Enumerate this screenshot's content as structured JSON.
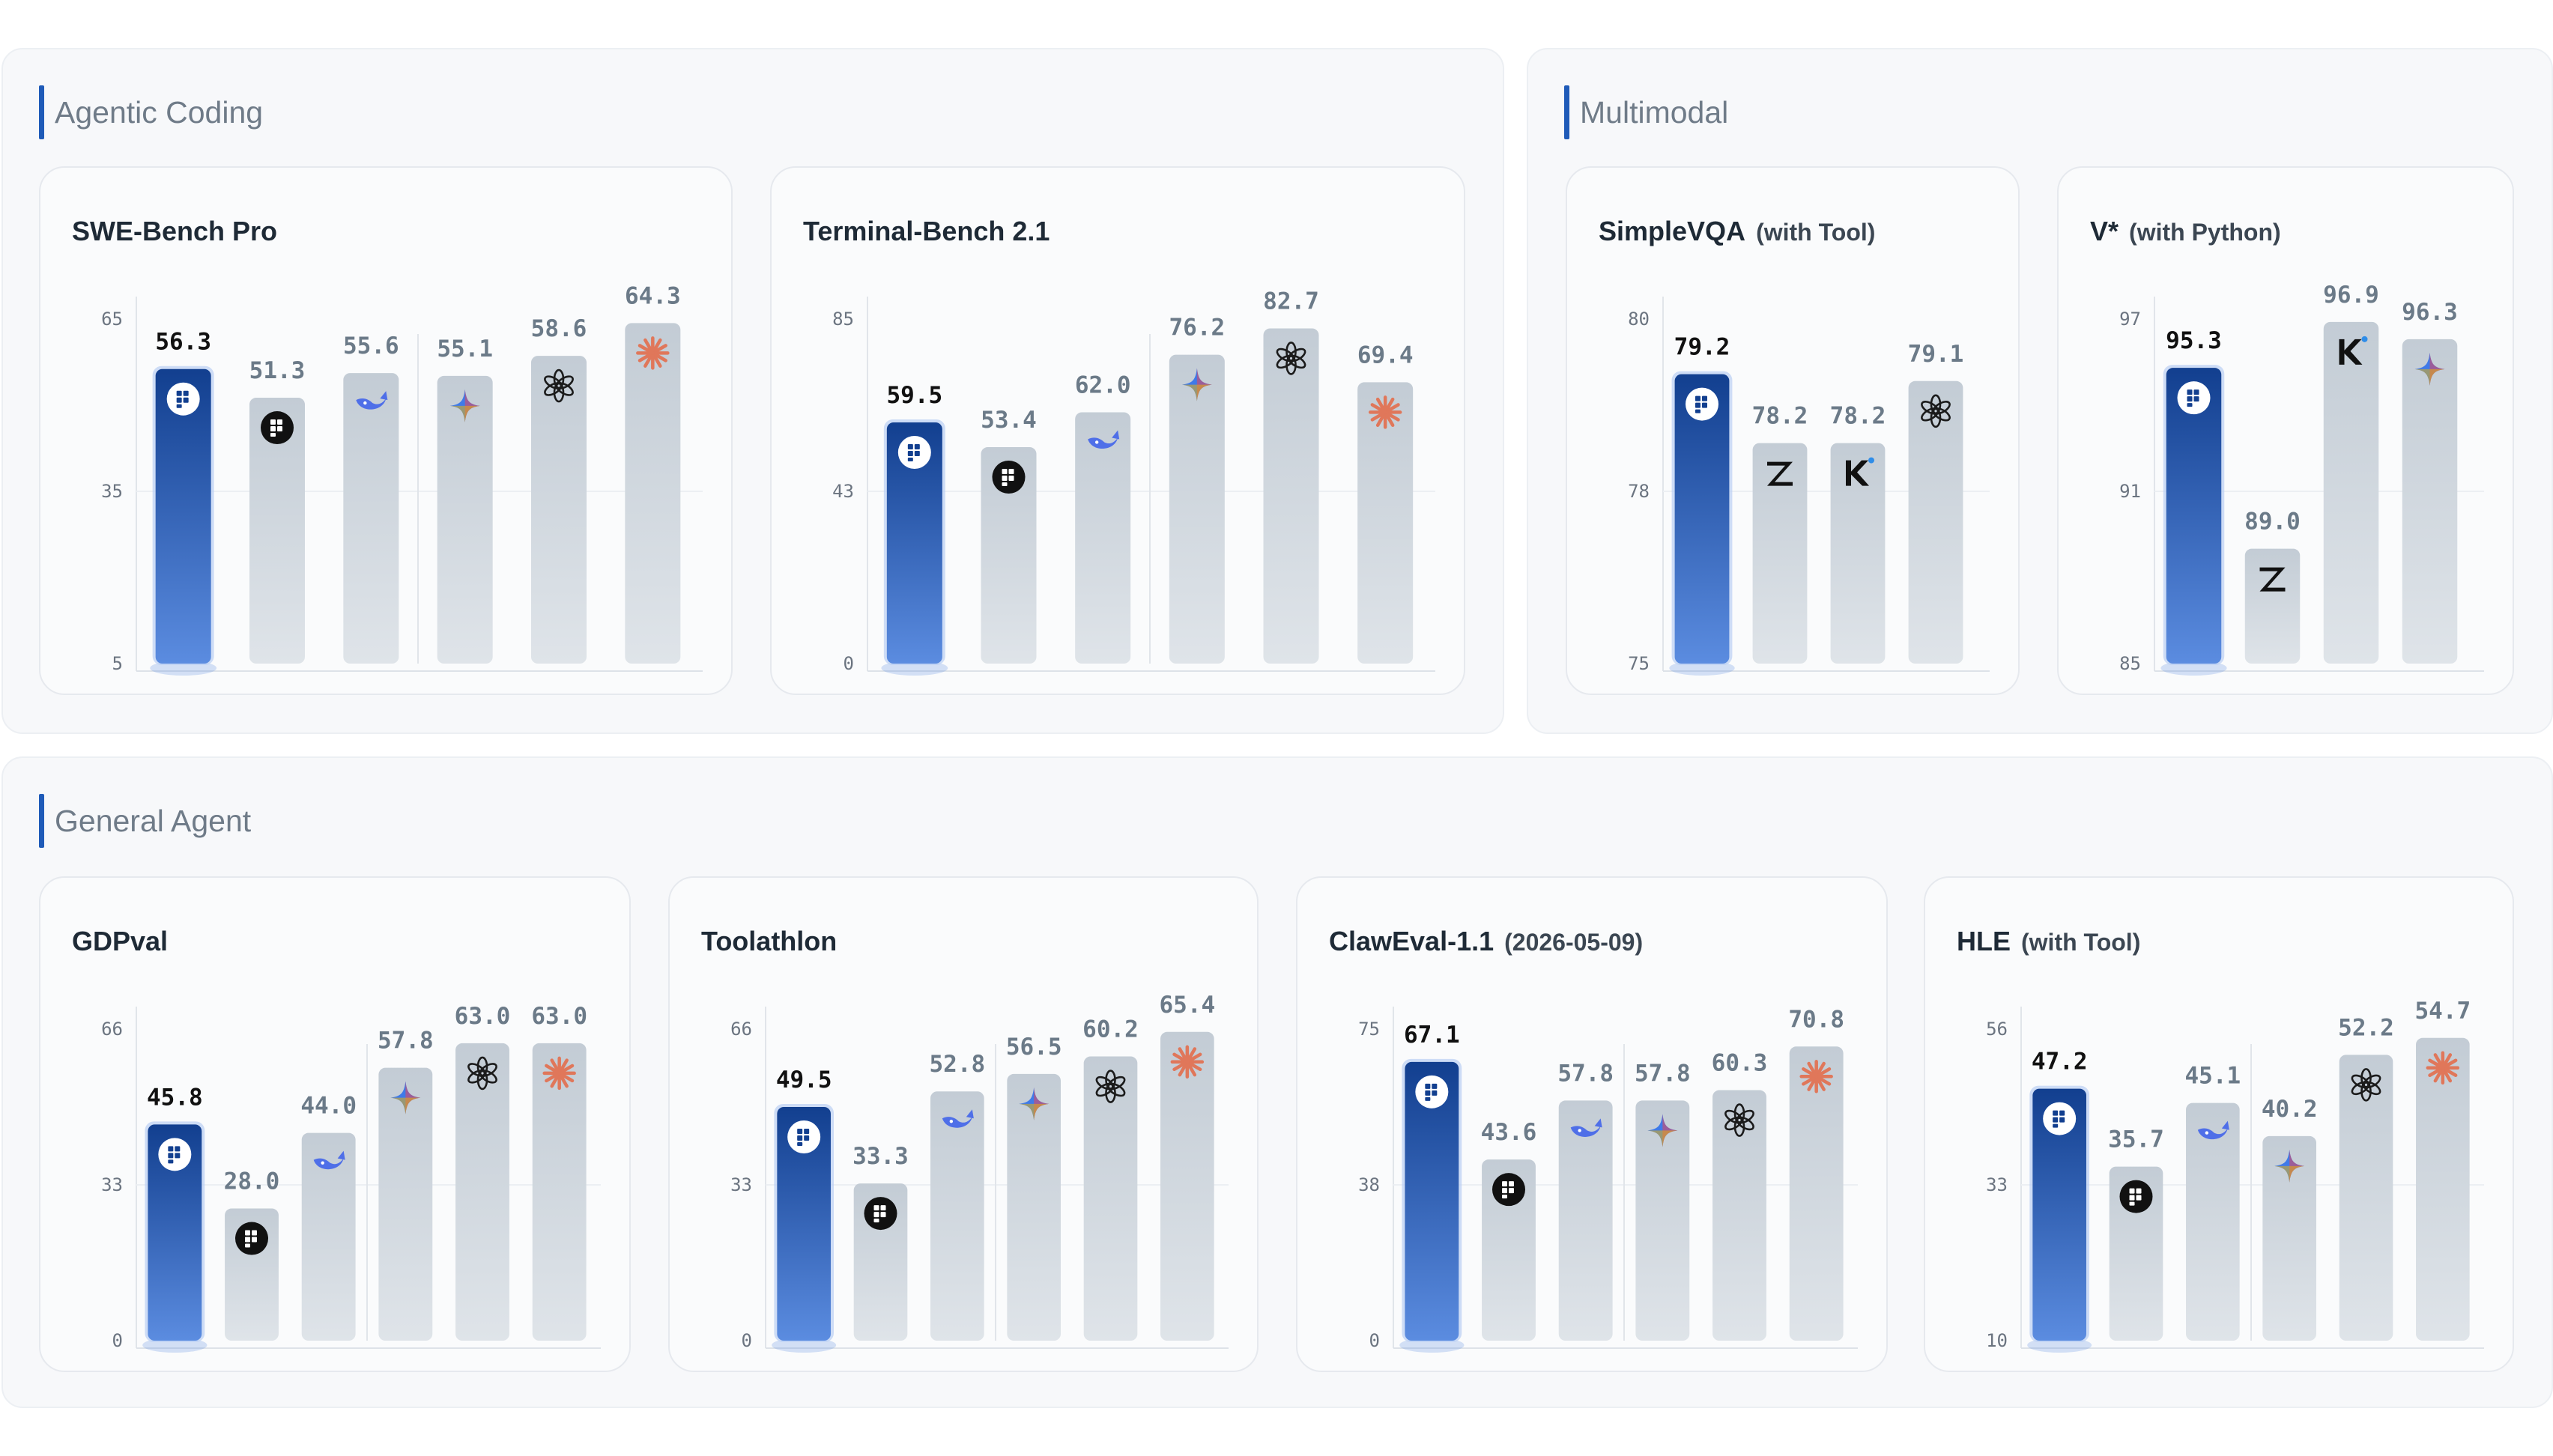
{
  "sections": [
    {
      "title": "Agentic Coding"
    },
    {
      "title": "Multimodal"
    },
    {
      "title": "General Agent"
    }
  ],
  "colors": {
    "highlight_top": "#123f8f",
    "highlight_bottom": "#5b8ce0",
    "bar_top": "#c3ccd5",
    "bar_bottom": "#dfe4e9",
    "highlight_label": "#111111",
    "other_label": "#6b7a88",
    "section_accent": "#1f5bb8"
  },
  "chart_data": [
    {
      "type": "bar",
      "title": "SWE-Bench Pro",
      "subtitle": "",
      "yticks": [
        "65",
        "35",
        "5"
      ],
      "ylim": [
        5,
        65
      ],
      "values": [
        56.3,
        51.3,
        55.6,
        55.1,
        58.6,
        64.3
      ],
      "labels": [
        "56.3",
        "51.3",
        "55.6",
        "55.1",
        "58.6",
        "64.3"
      ],
      "icons": [
        "highlight-logo-icon",
        "dark-logo-icon",
        "whale-icon",
        "sparkle-icon",
        "openai-icon",
        "starburst-icon"
      ],
      "highlight": 0,
      "group_split": 3
    },
    {
      "type": "bar",
      "title": "Terminal-Bench 2.1",
      "subtitle": "",
      "yticks": [
        "85",
        "43",
        "0"
      ],
      "ylim": [
        0,
        85
      ],
      "values": [
        59.5,
        53.4,
        62.0,
        76.2,
        82.7,
        69.4
      ],
      "labels": [
        "59.5",
        "53.4",
        "62.0",
        "76.2",
        "82.7",
        "69.4"
      ],
      "icons": [
        "highlight-logo-icon",
        "dark-logo-icon",
        "whale-icon",
        "sparkle-icon",
        "openai-icon",
        "starburst-icon"
      ],
      "highlight": 0,
      "group_split": 3
    },
    {
      "type": "bar",
      "title": "SimpleVQA",
      "subtitle": "(with Tool)",
      "yticks": [
        "80",
        "78",
        "75"
      ],
      "ylim": [
        75,
        80
      ],
      "values": [
        79.2,
        78.2,
        78.2,
        79.1
      ],
      "labels": [
        "79.2",
        "78.2",
        "78.2",
        "79.1"
      ],
      "icons": [
        "highlight-logo-icon",
        "z-logo-icon",
        "k-logo-icon",
        "openai-icon"
      ],
      "highlight": 0,
      "group_split": null
    },
    {
      "type": "bar",
      "title": "V*",
      "subtitle": "(with Python)",
      "yticks": [
        "97",
        "91",
        "85"
      ],
      "ylim": [
        85,
        97
      ],
      "values": [
        95.3,
        89.0,
        96.9,
        96.3
      ],
      "labels": [
        "95.3",
        "89.0",
        "96.9",
        "96.3"
      ],
      "icons": [
        "highlight-logo-icon",
        "z-logo-icon",
        "k-logo-icon",
        "sparkle-icon"
      ],
      "highlight": 0,
      "group_split": null
    },
    {
      "type": "bar",
      "title": "GDPval",
      "subtitle": "",
      "yticks": [
        "66",
        "33",
        "0"
      ],
      "ylim": [
        0,
        66
      ],
      "values": [
        45.8,
        28.0,
        44.0,
        57.8,
        63.0,
        63.0
      ],
      "labels": [
        "45.8",
        "28.0",
        "44.0",
        "57.8",
        "63.0",
        "63.0"
      ],
      "icons": [
        "highlight-logo-icon",
        "dark-logo-icon",
        "whale-icon",
        "sparkle-icon",
        "openai-icon",
        "starburst-icon"
      ],
      "highlight": 0,
      "group_split": 3
    },
    {
      "type": "bar",
      "title": "Toolathlon",
      "subtitle": "",
      "yticks": [
        "66",
        "33",
        "0"
      ],
      "ylim": [
        0,
        66
      ],
      "values": [
        49.5,
        33.3,
        52.8,
        56.5,
        60.2,
        65.4
      ],
      "labels": [
        "49.5",
        "33.3",
        "52.8",
        "56.5",
        "60.2",
        "65.4"
      ],
      "icons": [
        "highlight-logo-icon",
        "dark-logo-icon",
        "whale-icon",
        "sparkle-icon",
        "openai-icon",
        "starburst-icon"
      ],
      "highlight": 0,
      "group_split": 3
    },
    {
      "type": "bar",
      "title": "ClawEval-1.1",
      "subtitle": "(2026-05-09)",
      "yticks": [
        "75",
        "38",
        "0"
      ],
      "ylim": [
        0,
        75
      ],
      "values": [
        67.1,
        43.6,
        57.8,
        57.8,
        60.3,
        70.8
      ],
      "labels": [
        "67.1",
        "43.6",
        "57.8",
        "57.8",
        "60.3",
        "70.8"
      ],
      "icons": [
        "highlight-logo-icon",
        "dark-logo-icon",
        "whale-icon",
        "sparkle-icon",
        "openai-icon",
        "starburst-icon"
      ],
      "highlight": 0,
      "group_split": 3
    },
    {
      "type": "bar",
      "title": "HLE",
      "subtitle": "(with Tool)",
      "yticks": [
        "56",
        "33",
        "10"
      ],
      "ylim": [
        10,
        56
      ],
      "values": [
        47.2,
        35.7,
        45.1,
        40.2,
        52.2,
        54.7
      ],
      "labels": [
        "47.2",
        "35.7",
        "45.1",
        "40.2",
        "52.2",
        "54.7"
      ],
      "icons": [
        "highlight-logo-icon",
        "dark-logo-icon",
        "whale-icon",
        "sparkle-icon",
        "openai-icon",
        "starburst-icon"
      ],
      "highlight": 0,
      "group_split": 3
    }
  ]
}
